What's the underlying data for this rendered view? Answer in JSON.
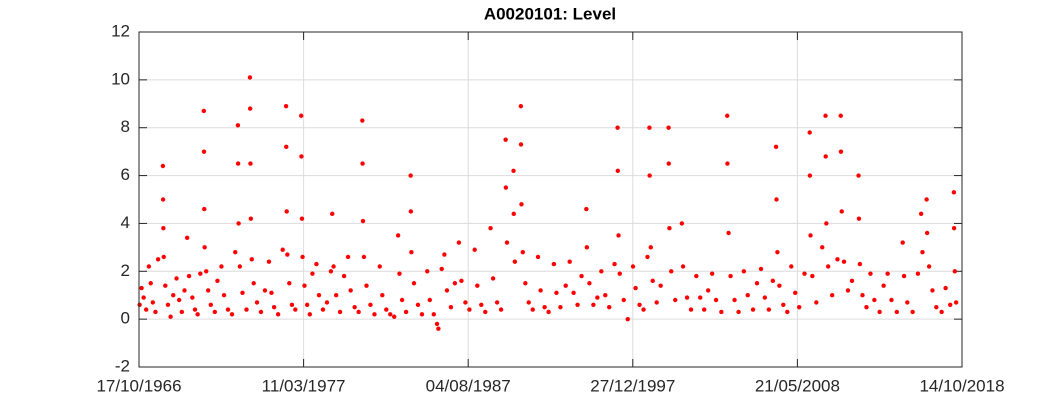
{
  "chart_data": {
    "type": "scatter",
    "title": "A0020101: Level",
    "x": [
      "1966-11-01",
      "1966-12-15",
      "1967-02-01",
      "1967-04-01",
      "1967-06-01",
      "1967-07-15",
      "1967-09-01",
      "1967-11-01",
      "1968-01-01",
      "1968-04-20",
      "1968-04-25",
      "1968-05-01",
      "1968-05-10",
      "1968-06-15",
      "1968-08-15",
      "1968-10-15",
      "1968-12-15",
      "1969-03-01",
      "1969-05-01",
      "1969-07-01",
      "1969-09-01",
      "1969-11-01",
      "1969-12-15",
      "1970-03-01",
      "1970-05-01",
      "1970-07-01",
      "1970-09-01",
      "1970-11-20",
      "1970-11-25",
      "1970-12-01",
      "1970-12-10",
      "1971-01-15",
      "1971-03-01",
      "1971-05-01",
      "1971-08-01",
      "1971-10-01",
      "1972-01-01",
      "1972-03-01",
      "1972-06-01",
      "1972-09-01",
      "1972-11-15",
      "1973-01-15",
      "1973-01-20",
      "1973-02-01",
      "1973-03-01",
      "1973-05-01",
      "1973-08-01",
      "1973-10-20",
      "1973-10-25",
      "1973-11-01",
      "1973-11-10",
      "1973-12-01",
      "1974-01-15",
      "1974-04-01",
      "1974-07-01",
      "1974-10-01",
      "1975-01-01",
      "1975-03-01",
      "1975-05-01",
      "1975-08-01",
      "1975-11-15",
      "1976-02-01",
      "1976-02-05",
      "1976-02-15",
      "1976-03-01",
      "1976-04-15",
      "1976-06-15",
      "1976-09-01",
      "1977-01-15",
      "1977-01-20",
      "1977-02-01",
      "1977-02-15",
      "1977-04-01",
      "1977-06-01",
      "1977-08-01",
      "1977-10-01",
      "1978-01-01",
      "1978-03-01",
      "1978-06-01",
      "1978-09-01",
      "1978-12-01",
      "1979-01-01",
      "1979-02-01",
      "1979-04-01",
      "1979-07-01",
      "1979-10-01",
      "1980-01-01",
      "1980-03-01",
      "1980-06-01",
      "1980-09-01",
      "1980-11-25",
      "1980-12-01",
      "1980-12-10",
      "1981-01-01",
      "1981-03-01",
      "1981-06-01",
      "1981-09-01",
      "1982-01-01",
      "1982-03-01",
      "1982-06-01",
      "1982-09-01",
      "1982-12-01",
      "1983-03-01",
      "1983-04-01",
      "1983-06-01",
      "1983-09-01",
      "1983-12-15",
      "1983-12-20",
      "1984-01-01",
      "1984-03-01",
      "1984-06-01",
      "1984-09-01",
      "1985-01-01",
      "1985-03-01",
      "1985-06-01",
      "1985-08-15",
      "1985-09-15",
      "1985-12-01",
      "1986-02-01",
      "1986-04-01",
      "1986-07-01",
      "1986-10-01",
      "1987-01-01",
      "1987-03-01",
      "1987-06-01",
      "1987-09-01",
      "1988-01-01",
      "1988-03-01",
      "1988-06-01",
      "1988-09-01",
      "1989-01-01",
      "1989-03-01",
      "1989-06-01",
      "1989-09-01",
      "1989-12-15",
      "1989-12-20",
      "1990-01-15",
      "1990-06-15",
      "1990-06-20",
      "1990-07-15",
      "1990-12-01",
      "1990-12-05",
      "1990-12-15",
      "1991-01-15",
      "1991-03-15",
      "1991-06-01",
      "1991-09-01",
      "1992-01-01",
      "1992-03-01",
      "1992-06-01",
      "1992-09-01",
      "1993-01-01",
      "1993-03-01",
      "1993-06-01",
      "1993-10-01",
      "1994-01-01",
      "1994-04-01",
      "1994-07-01",
      "1994-10-01",
      "1995-01-20",
      "1995-02-01",
      "1995-04-01",
      "1995-07-01",
      "1995-10-01",
      "1996-01-01",
      "1996-04-01",
      "1996-07-01",
      "1996-11-01",
      "1997-01-10",
      "1997-01-15",
      "1997-02-01",
      "1997-03-01",
      "1997-06-01",
      "1997-09-01",
      "1998-01-01",
      "1998-03-01",
      "1998-06-01",
      "1998-09-01",
      "1998-12-01",
      "1999-01-15",
      "1999-01-20",
      "1999-02-15",
      "1999-04-01",
      "1999-07-01",
      "1999-10-01",
      "2000-04-01",
      "2000-04-05",
      "2000-04-20",
      "2000-06-01",
      "2000-09-01",
      "2001-02-01",
      "2001-03-01",
      "2001-06-01",
      "2001-09-01",
      "2002-01-01",
      "2002-04-01",
      "2002-07-01",
      "2002-10-01",
      "2003-01-01",
      "2003-04-01",
      "2003-08-01",
      "2003-12-15",
      "2003-12-20",
      "2004-01-15",
      "2004-03-01",
      "2004-06-01",
      "2004-09-01",
      "2005-01-01",
      "2005-04-01",
      "2005-08-01",
      "2005-11-01",
      "2006-02-01",
      "2006-05-01",
      "2006-08-01",
      "2006-11-01",
      "2007-01-15",
      "2007-01-25",
      "2007-02-15",
      "2007-04-01",
      "2007-07-01",
      "2007-10-01",
      "2008-01-01",
      "2008-04-01",
      "2008-07-01",
      "2008-11-01",
      "2009-03-01",
      "2009-03-05",
      "2009-03-20",
      "2009-05-01",
      "2009-08-01",
      "2009-12-15",
      "2010-03-01",
      "2010-03-05",
      "2010-03-20",
      "2010-05-01",
      "2010-08-01",
      "2010-12-01",
      "2011-02-15",
      "2011-02-20",
      "2011-03-10",
      "2011-05-01",
      "2011-08-01",
      "2011-11-01",
      "2012-04-01",
      "2012-04-10",
      "2012-05-01",
      "2012-07-01",
      "2012-10-01",
      "2013-01-01",
      "2013-04-01",
      "2013-08-01",
      "2013-11-01",
      "2014-02-01",
      "2014-05-01",
      "2014-09-01",
      "2015-01-15",
      "2015-02-15",
      "2015-05-01",
      "2015-09-01",
      "2016-01-01",
      "2016-03-15",
      "2016-04-15",
      "2016-07-20",
      "2016-08-01",
      "2016-09-15",
      "2016-12-01",
      "2017-03-01",
      "2017-07-01",
      "2017-10-01",
      "2018-01-15",
      "2018-04-10",
      "2018-04-15",
      "2018-05-01",
      "2018-06-01"
    ],
    "values": [
      0.6,
      1.3,
      0.9,
      0.4,
      2.2,
      1.5,
      0.7,
      0.3,
      2.5,
      6.4,
      5.0,
      3.8,
      2.6,
      1.4,
      0.6,
      0.1,
      1.0,
      1.7,
      0.8,
      0.3,
      1.2,
      3.4,
      1.8,
      0.9,
      0.4,
      0.2,
      1.9,
      8.7,
      7.0,
      4.6,
      3.0,
      2.0,
      1.2,
      0.6,
      0.3,
      1.6,
      2.2,
      1.0,
      0.4,
      0.2,
      2.8,
      8.1,
      6.5,
      4.0,
      2.2,
      1.1,
      0.4,
      10.1,
      8.8,
      6.5,
      4.2,
      2.5,
      1.5,
      0.7,
      0.3,
      1.2,
      2.4,
      1.1,
      0.5,
      0.2,
      2.9,
      8.9,
      7.2,
      4.5,
      2.7,
      1.5,
      0.6,
      0.4,
      8.5,
      6.8,
      4.2,
      2.6,
      1.4,
      0.6,
      0.2,
      1.9,
      2.3,
      1.0,
      0.4,
      0.7,
      2.0,
      4.4,
      2.2,
      1.0,
      0.3,
      1.8,
      2.6,
      1.2,
      0.5,
      0.3,
      8.3,
      6.5,
      4.1,
      2.6,
      1.4,
      0.6,
      0.2,
      2.2,
      1.0,
      0.4,
      0.2,
      0.1,
      3.5,
      1.9,
      0.8,
      0.3,
      6.0,
      4.5,
      2.8,
      1.5,
      0.6,
      0.2,
      2.0,
      0.8,
      0.2,
      -0.2,
      -0.4,
      2.1,
      2.7,
      1.2,
      0.5,
      1.5,
      3.2,
      1.6,
      0.7,
      0.4,
      2.9,
      1.4,
      0.6,
      0.3,
      3.8,
      1.7,
      0.7,
      0.4,
      7.5,
      5.5,
      3.2,
      6.2,
      4.4,
      2.4,
      8.9,
      7.3,
      4.8,
      2.8,
      1.5,
      0.7,
      0.4,
      2.6,
      1.2,
      0.5,
      0.3,
      2.3,
      1.1,
      0.5,
      1.4,
      2.4,
      1.1,
      0.6,
      1.8,
      4.6,
      3.0,
      1.5,
      0.6,
      0.9,
      2.0,
      1.0,
      0.5,
      2.3,
      8.0,
      6.2,
      3.5,
      1.9,
      0.8,
      0.0,
      2.2,
      1.3,
      0.6,
      0.4,
      2.6,
      8.0,
      6.0,
      3.0,
      1.6,
      0.7,
      1.4,
      8.0,
      6.5,
      3.8,
      2.0,
      0.8,
      4.0,
      2.2,
      0.9,
      0.4,
      1.8,
      0.9,
      0.4,
      1.2,
      1.9,
      0.8,
      0.3,
      8.5,
      6.5,
      3.6,
      1.8,
      0.8,
      0.3,
      2.0,
      1.0,
      0.4,
      1.5,
      2.1,
      0.9,
      0.4,
      1.6,
      7.2,
      5.0,
      2.8,
      1.4,
      0.6,
      0.3,
      2.2,
      1.1,
      0.5,
      1.9,
      7.8,
      6.0,
      3.5,
      1.8,
      0.7,
      3.0,
      8.5,
      6.8,
      4.0,
      2.2,
      1.0,
      2.5,
      8.5,
      7.0,
      4.5,
      2.4,
      1.2,
      1.6,
      6.0,
      4.2,
      2.3,
      1.0,
      0.5,
      1.9,
      0.8,
      0.3,
      1.4,
      1.9,
      0.8,
      0.3,
      3.2,
      1.8,
      0.7,
      0.3,
      1.9,
      4.4,
      2.8,
      5.0,
      3.6,
      2.2,
      1.2,
      0.5,
      0.3,
      1.3,
      0.6,
      5.3,
      3.8,
      2.0,
      0.7
    ],
    "color": "#ff0000",
    "xlim": [
      "1966-10-17",
      "2018-10-14"
    ],
    "xticks": [
      {
        "value": "1966-10-17",
        "label": "17/10/1966"
      },
      {
        "value": "1977-03-11",
        "label": "11/03/1977"
      },
      {
        "value": "1987-08-04",
        "label": "04/08/1987"
      },
      {
        "value": "1997-12-27",
        "label": "27/12/1997"
      },
      {
        "value": "2008-05-21",
        "label": "21/05/2008"
      },
      {
        "value": "2018-10-14",
        "label": "14/10/2018"
      }
    ],
    "ylim": [
      -2,
      12
    ],
    "yticks": [
      -2,
      0,
      2,
      4,
      6,
      8,
      10,
      12
    ],
    "grid": true
  }
}
